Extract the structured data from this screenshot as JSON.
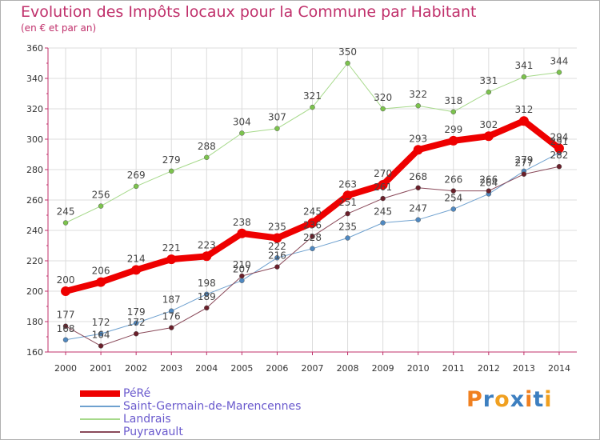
{
  "chart_data": {
    "type": "line",
    "title": "Evolution des Impôts locaux pour la Commune par Habitant",
    "subtitle": "(en € et par an)",
    "x": [
      "2000",
      "2001",
      "2002",
      "2003",
      "2004",
      "2005",
      "2006",
      "2007",
      "2008",
      "2009",
      "2010",
      "2011",
      "2012",
      "2013",
      "2014"
    ],
    "ylim": [
      160,
      360
    ],
    "yticks": [
      "160",
      "180",
      "200",
      "220",
      "240",
      "260",
      "280",
      "300",
      "320",
      "340",
      "360"
    ],
    "grid": true,
    "series": [
      {
        "name": "Saint-Germain-de-Marencennes",
        "color": "#6fa1cf",
        "marker": "#4f88c0",
        "width": 1,
        "markerSize": 3,
        "values": [
          168,
          172,
          179,
          187,
          198,
          207,
          222,
          228,
          235,
          245,
          247,
          254,
          264,
          279,
          291
        ],
        "labels": [
          "168",
          "172",
          "179",
          "187",
          "198",
          "207",
          "222",
          "228",
          "235",
          "245",
          "247",
          "254",
          "264",
          "279",
          "291"
        ]
      },
      {
        "name": "Landrais",
        "color": "#a6d98a",
        "marker": "#7cc34d",
        "width": 1,
        "markerSize": 3,
        "values": [
          245,
          256,
          269,
          279,
          288,
          304,
          307,
          321,
          350,
          320,
          322,
          318,
          331,
          341,
          344
        ],
        "labels": [
          "245",
          "256",
          "269",
          "279",
          "288",
          "304",
          "307",
          "321",
          "350",
          "320",
          "322",
          "318",
          "331",
          "341",
          "344"
        ]
      },
      {
        "name": "Puyravault",
        "color": "#8a4a5a",
        "marker": "#6a1f2a",
        "width": 1,
        "markerSize": 3,
        "values": [
          177,
          164,
          172,
          176,
          189,
          210,
          216,
          236,
          251,
          261,
          268,
          266,
          266,
          277,
          282
        ],
        "labels": [
          "177",
          "164",
          "172",
          "176",
          "189",
          "210",
          "216",
          "236",
          "251",
          "261",
          "268",
          "266",
          "266",
          "277",
          "282"
        ]
      },
      {
        "name": "PéRé",
        "color": "#ee0000",
        "marker": "#ee0000",
        "width": 8,
        "markerSize": 6,
        "values": [
          200,
          206,
          214,
          221,
          223,
          238,
          235,
          245,
          263,
          270,
          293,
          299,
          302,
          312,
          294
        ],
        "labels": [
          "200",
          "206",
          "214",
          "221",
          "223",
          "238",
          "235",
          "245",
          "263",
          "270",
          "293",
          "299",
          "302",
          "312",
          "294"
        ]
      }
    ],
    "legend": [
      "PéRé",
      "Saint-Germain-de-Marencennes",
      "Landrais",
      "Puyravault"
    ]
  },
  "logo": {
    "text": "Proxiti",
    "colors": [
      "#f08020",
      "#3d7fc0",
      "#f0a020",
      "#3d7fc0",
      "#f08020",
      "#3d7fc0",
      "#f0a020"
    ]
  }
}
